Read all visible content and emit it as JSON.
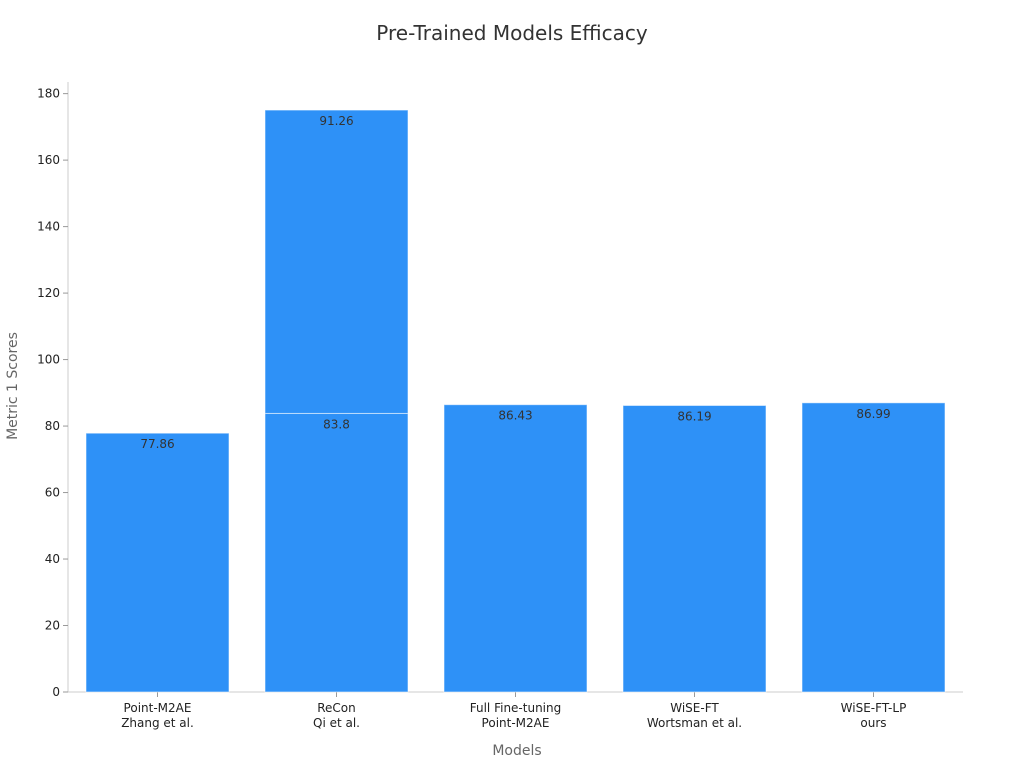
{
  "chart_data": {
    "type": "bar",
    "stacked": true,
    "title": "Pre-Trained Models Efficacy",
    "xlabel": "Models",
    "ylabel": "Metric 1 Scores",
    "ylim": [
      0,
      185
    ],
    "yticks": [
      0,
      20,
      40,
      60,
      80,
      100,
      120,
      140,
      160,
      180
    ],
    "categories": [
      [
        "Point-M2AE",
        "Zhang et al."
      ],
      [
        "ReCon",
        "Qi et al."
      ],
      [
        "Full Fine-tuning",
        "Point-M2AE"
      ],
      [
        "WiSE-FT",
        "Wortsman et al."
      ],
      [
        "WiSE-FT-LP",
        "ours"
      ]
    ],
    "series": [
      {
        "values": [
          77.86,
          83.8,
          86.43,
          86.19,
          86.99
        ]
      },
      {
        "values": [
          null,
          91.26,
          null,
          null,
          null
        ]
      }
    ],
    "bar_color": "#2e91f7",
    "grid": false,
    "legend": "none"
  }
}
